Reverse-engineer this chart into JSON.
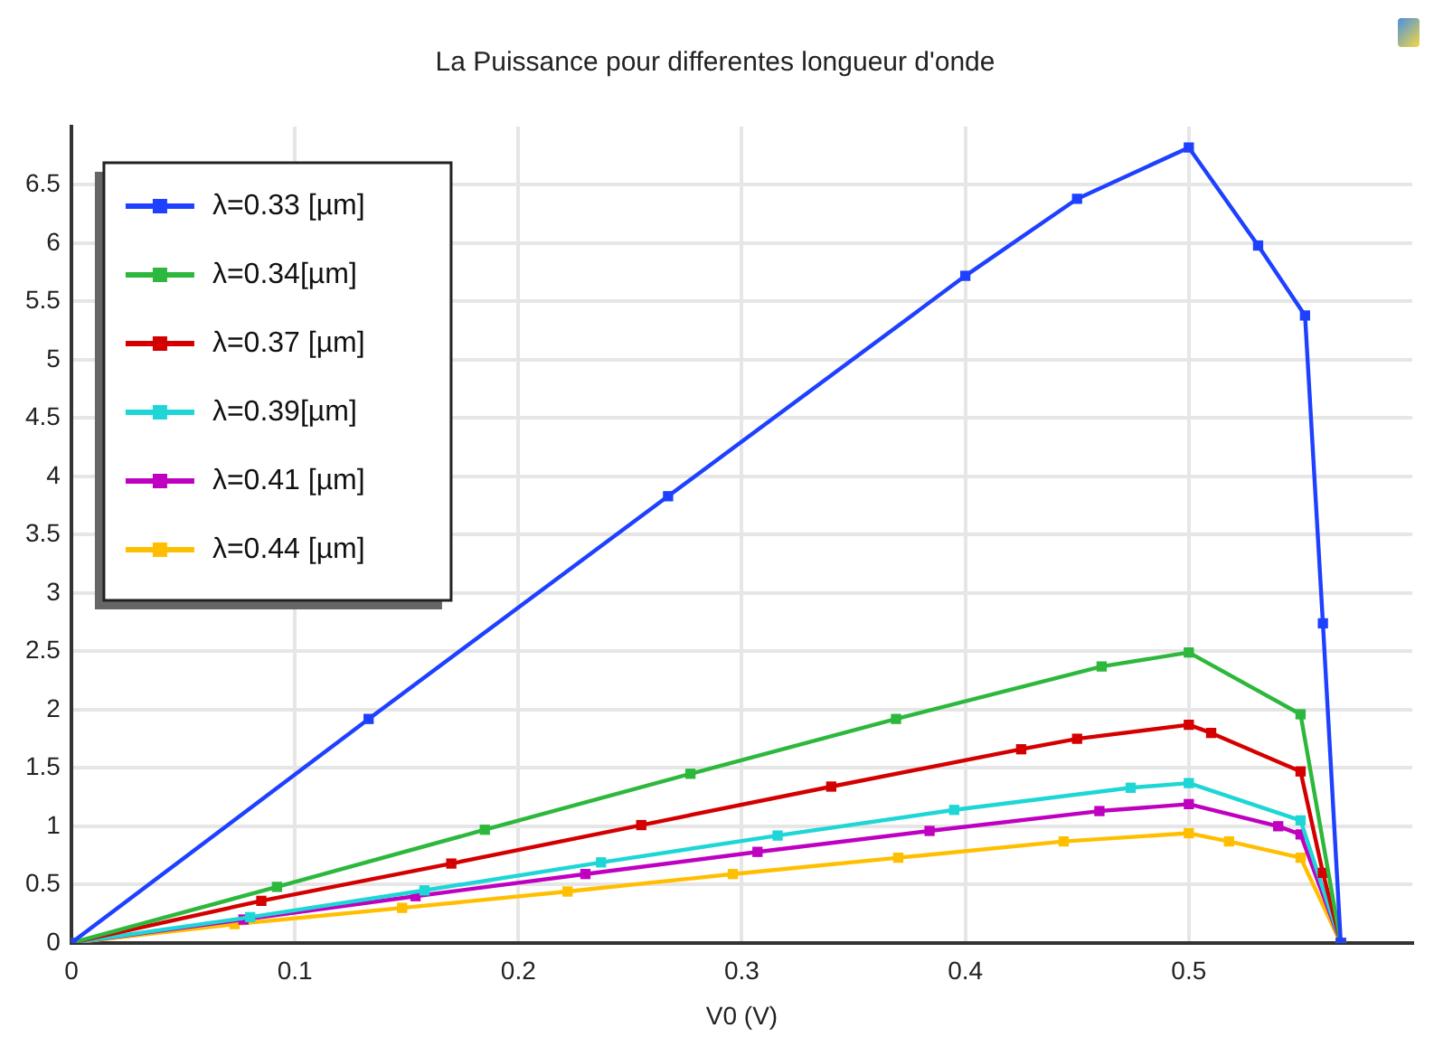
{
  "chart_data": {
    "type": "line",
    "title": "La Puissance pour differentes longueur d'onde",
    "xlabel": "V0 (V)",
    "xlim": [
      0,
      0.6
    ],
    "xticks": [
      0,
      0.1,
      0.2,
      0.3,
      0.4,
      0.5
    ],
    "ylim": [
      0,
      7
    ],
    "yticks": [
      0,
      0.5,
      1,
      1.5,
      2,
      2.5,
      3,
      3.5,
      4,
      4.5,
      5,
      5.5,
      6,
      6.5
    ],
    "grid": true,
    "legend": "top left",
    "marker": "square",
    "line_style": "solid",
    "series": [
      {
        "name": "λ=0.33 [µm]",
        "color": "#1e40ff",
        "x": [
          0,
          0.133,
          0.267,
          0.4,
          0.45,
          0.5,
          0.531,
          0.552,
          0.56,
          0.568
        ],
        "values": [
          0,
          1.92,
          3.83,
          5.72,
          6.38,
          6.82,
          5.98,
          5.38,
          2.74,
          0
        ]
      },
      {
        "name": "λ=0.34[µm]",
        "color": "#2db83d",
        "x": [
          0,
          0.092,
          0.185,
          0.277,
          0.369,
          0.461,
          0.5,
          0.55,
          0.568
        ],
        "values": [
          0,
          0.48,
          0.97,
          1.45,
          1.92,
          2.37,
          2.49,
          1.96,
          0
        ]
      },
      {
        "name": "λ=0.37 [µm]",
        "color": "#d40000",
        "x": [
          0,
          0.085,
          0.17,
          0.255,
          0.34,
          0.425,
          0.45,
          0.5,
          0.51,
          0.55,
          0.56,
          0.568
        ],
        "values": [
          0,
          0.36,
          0.68,
          1.01,
          1.34,
          1.66,
          1.75,
          1.87,
          1.8,
          1.47,
          0.6,
          0
        ]
      },
      {
        "name": "λ=0.39[µm]",
        "color": "#1ed6d6",
        "x": [
          0,
          0.08,
          0.158,
          0.237,
          0.316,
          0.395,
          0.474,
          0.5,
          0.55,
          0.568
        ],
        "values": [
          0,
          0.22,
          0.45,
          0.69,
          0.92,
          1.14,
          1.33,
          1.37,
          1.05,
          0
        ]
      },
      {
        "name": "λ=0.41 [µm]",
        "color": "#c000c0",
        "x": [
          0,
          0.077,
          0.154,
          0.23,
          0.307,
          0.384,
          0.46,
          0.5,
          0.54,
          0.55,
          0.568
        ],
        "values": [
          0,
          0.2,
          0.4,
          0.59,
          0.78,
          0.96,
          1.13,
          1.19,
          1,
          0.93,
          0
        ]
      },
      {
        "name": "λ=0.44 [µm]",
        "color": "#ffbf00",
        "x": [
          0,
          0.073,
          0.148,
          0.222,
          0.296,
          0.37,
          0.444,
          0.5,
          0.518,
          0.55,
          0.568
        ],
        "values": [
          0,
          0.16,
          0.3,
          0.44,
          0.59,
          0.73,
          0.87,
          0.94,
          0.87,
          0.73,
          0
        ]
      }
    ]
  }
}
